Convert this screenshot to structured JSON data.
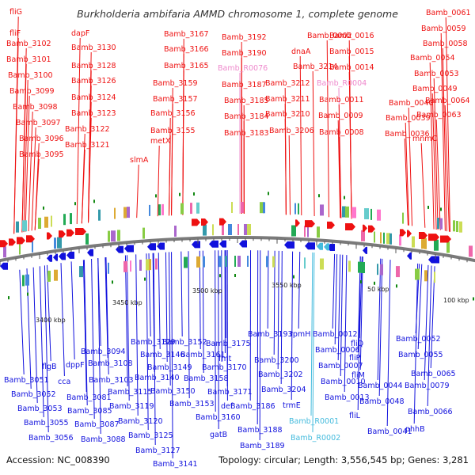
{
  "title": "Burkholderia ambifaria AMMD chromosome 1, complete genome",
  "footer": {
    "accession": "Accession: NC_008390",
    "summary": "Topology: circular; Length: 3,556,545 bp; Genes: 3,281"
  },
  "colors": {
    "forward_genes": "#ee1111",
    "reverse_genes": "#1111dd",
    "rna_genes": "#ee88cc",
    "rna_genes_reverse": "#44bbdd",
    "backbone": "#7a7a7a",
    "marker": "#118811"
  },
  "scale_labels": [
    "3400 kbp",
    "3450 kbp",
    "3500 kbp",
    "3550 kbp",
    "50 kbp",
    "100 kbp"
  ],
  "forward_labels": [
    "fliG",
    "fliF",
    "Bamb_3102",
    "Bamb_3101",
    "Bamb_3100",
    "Bamb_3099",
    "Bamb_3098",
    "Bamb_3097",
    "Bamb_3096",
    "Bamb_3095",
    "dapF",
    "Bamb_3130",
    "Bamb_3128",
    "Bamb_3126",
    "Bamb_3124",
    "Bamb_3123",
    "Bamb_3122",
    "Bamb_3121",
    "slmA",
    "Bamb_3167",
    "Bamb_3166",
    "Bamb_3165",
    "Bamb_3159",
    "Bamb_3157",
    "Bamb_3156",
    "Bamb_3155",
    "metX",
    "Bamb_3192",
    "Bamb_3190",
    "Bamb_R0076",
    "Bamb_3187",
    "Bamb_3185",
    "Bamb_3184",
    "Bamb_3183",
    "Bamb_0002",
    "dnaA",
    "Bamb_3214",
    "Bamb_3212",
    "Bamb_3211",
    "Bamb_3210",
    "Bamb_3206",
    "Bamb_0016",
    "Bamb_0015",
    "Bamb_0014",
    "Bamb_R0004",
    "Bamb_0011",
    "Bamb_0009",
    "Bamb_0008",
    "Bamb_0061",
    "Bamb_0059",
    "Bamb_0058",
    "Bamb_0054",
    "Bamb_0053",
    "Bamb_0049",
    "Bamb_0040",
    "Bamb_0064",
    "Bamb_0039",
    "Bamb_0063",
    "Bamb_0036",
    "mnmC"
  ],
  "reverse_labels": [
    "Bamb_3051",
    "flgB",
    "Bamb_3052",
    "Bamb_3053",
    "Bamb_3055",
    "Bamb_3056",
    "cca",
    "dppF",
    "Bamb_3094",
    "Bamb_3081",
    "Bamb_3085",
    "Bamb_3087",
    "Bamb_3088",
    "Bamb_3108",
    "Bamb_3103",
    "Bamb_3115",
    "Bamb_3119",
    "Bamb_3120",
    "Bamb_3125",
    "Bamb_3127",
    "Bamb_3141",
    "Bamb_3129",
    "Bamb_3146",
    "Bamb_3149",
    "Bamb_3140",
    "Bamb_3150",
    "Bamb_3153",
    "Bamb_3152",
    "Bamb_3161",
    "Bamb_3158",
    "Bamb_3160",
    "gatB",
    "Bamb_3175",
    "fmt",
    "Bamb_3170",
    "Bamb_3171",
    "def",
    "Bamb_3186",
    "Bamb_3188",
    "Bamb_3189",
    "Bamb_3193",
    "Bamb_3200",
    "Bamb_3202",
    "Bamb_3204",
    "trmE",
    "rpmH",
    "Bamb_R0001",
    "Bamb_R0002",
    "Bamb_0012",
    "Bamb_0006",
    "Bamb_0007",
    "Bamb_0010",
    "Bamb_0013",
    "fliQ",
    "fliP",
    "fliM",
    "Bamb_0044",
    "Bamb_0048",
    "fliL",
    "Bamb_0041",
    "Bamb_0052",
    "Bamb_0055",
    "Bamb_0065",
    "Bamb_0079",
    "Bamb_0066",
    "phhB"
  ]
}
